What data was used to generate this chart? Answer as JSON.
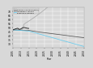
{
  "xlabel": "Year",
  "ylabel": "",
  "years_start": 2005,
  "years_end": 2050,
  "color_bau": "#aaaaaa",
  "color_mid": "#555555",
  "color_low": "#66ccee",
  "color_hist": "#222222",
  "legend_labels": [
    "Business as usual (BAU)",
    "Moderate scenario",
    "Enhanced scenario"
  ],
  "ylim_min": 25,
  "ylim_max": 75,
  "yticks": [
    30,
    35,
    40,
    45,
    50,
    55,
    60,
    65,
    70
  ],
  "xticks": [
    2005,
    2010,
    2015,
    2020,
    2025,
    2030,
    2035,
    2040,
    2045,
    2050
  ],
  "bg_color": "#d8d8d8",
  "grid_color": "#ffffff",
  "hist_start": 2005,
  "hist_end": 2015
}
